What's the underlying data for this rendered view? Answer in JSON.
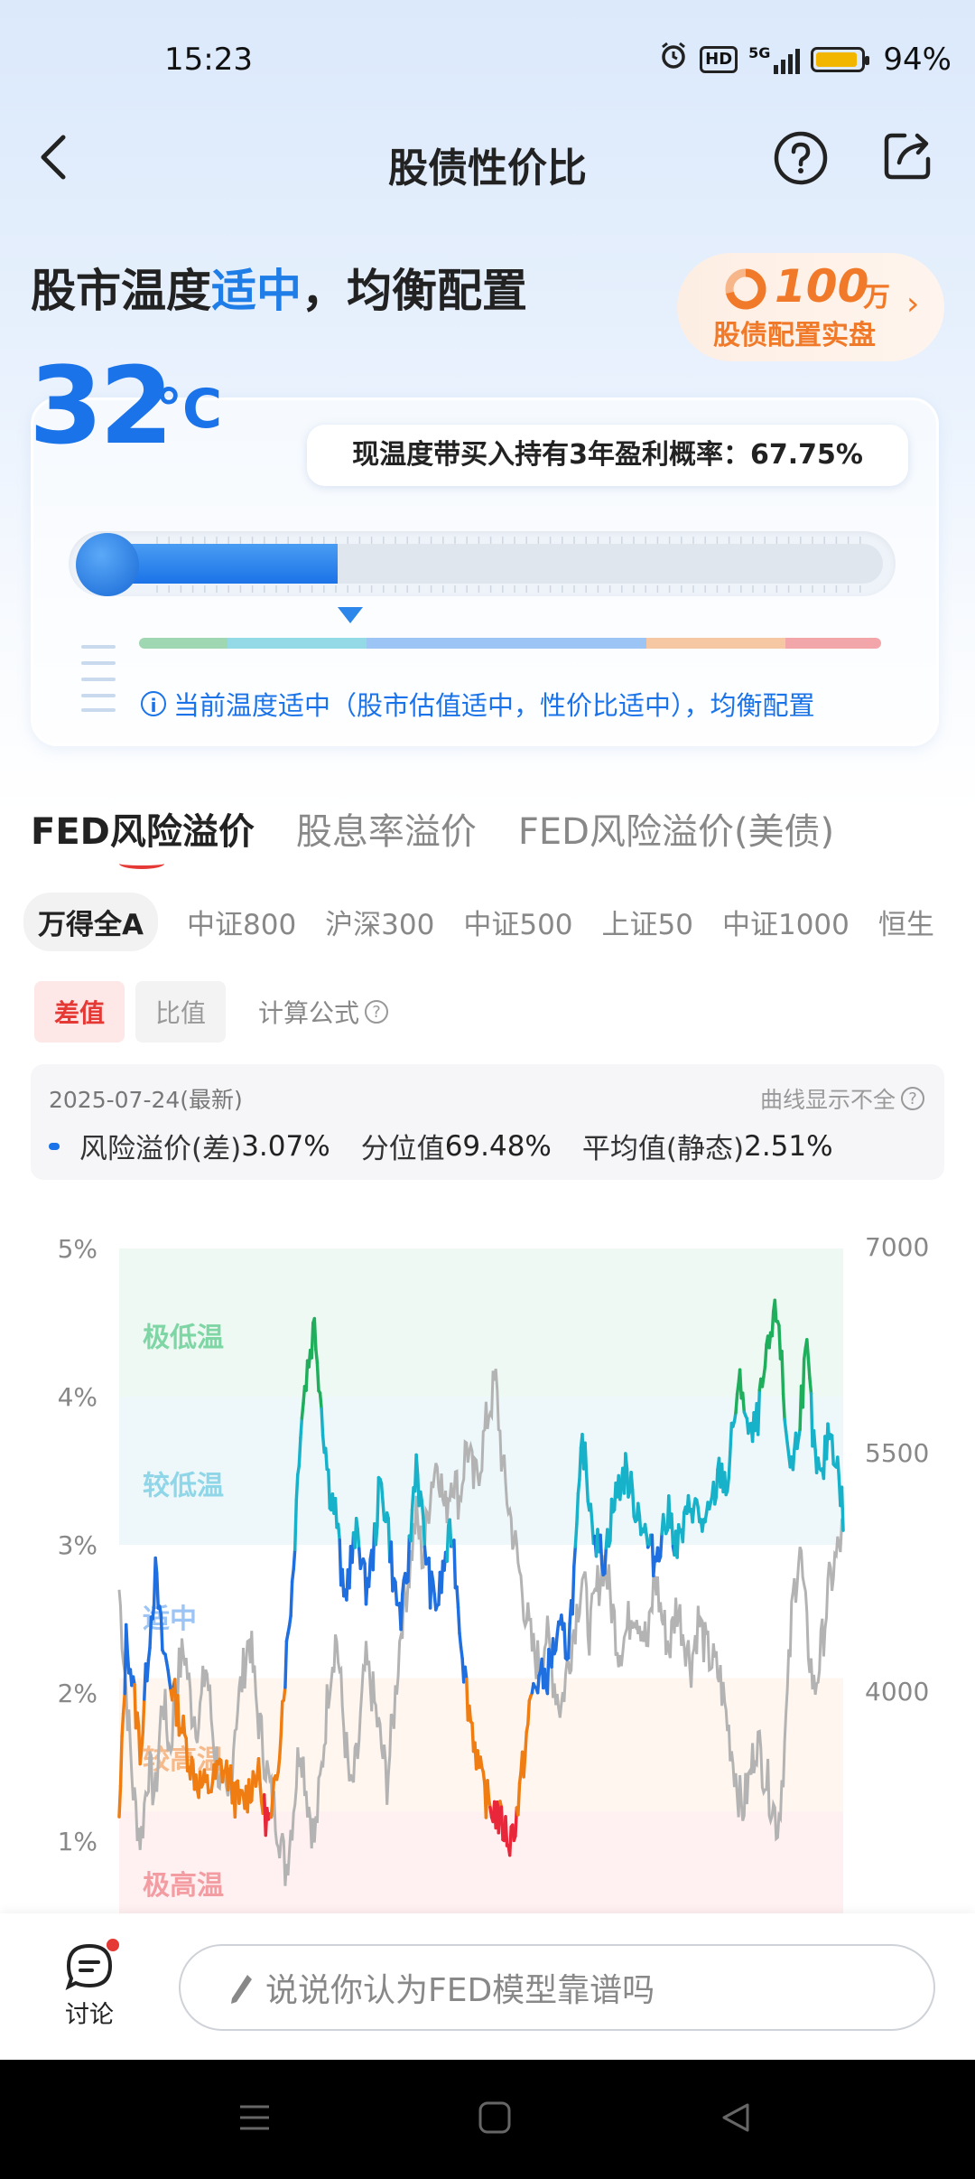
{
  "status_bar": {
    "time": "15:23",
    "network": "5G",
    "battery": "94%",
    "battery_level": 0.94,
    "hd": "HD"
  },
  "nav": {
    "title": "股债性价比"
  },
  "headline": {
    "prefix": "股市温度",
    "highlight": "适中",
    "suffix": "，均衡配置"
  },
  "promo": {
    "amount": "100",
    "unit": "万",
    "subtitle": "股债配置实盘"
  },
  "temperature": {
    "value": "32",
    "unit": "°C",
    "level": 0.32
  },
  "probability": {
    "text": "现温度带买入持有3年盈利概率：67.75%"
  },
  "temperature_scale": {
    "colors": [
      "#9fd7b2",
      "#93d9e6",
      "#9cc4f4",
      "#f5c7a3",
      "#f2a6aa"
    ]
  },
  "info_text": "当前温度适中（股市估值适中，性价比适中），均衡配置",
  "tabs": [
    {
      "label": "FED风险溢价",
      "active": true
    },
    {
      "label": "股息率溢价",
      "active": false
    },
    {
      "label": "FED风险溢价(美债)",
      "active": false
    }
  ],
  "indices": [
    {
      "label": "万得全A",
      "active": true
    },
    {
      "label": "中证800",
      "active": false
    },
    {
      "label": "沪深300",
      "active": false
    },
    {
      "label": "中证500",
      "active": false
    },
    {
      "label": "上证50",
      "active": false
    },
    {
      "label": "中证1000",
      "active": false
    },
    {
      "label": "恒生",
      "active": false
    }
  ],
  "toggles": {
    "diff": "差值",
    "ratio": "比值",
    "formula": "计算公式"
  },
  "stats": {
    "date": "2025-07-24(最新)",
    "note": "曲线显示不全",
    "risk_label": "风险溢价(差)",
    "risk_value": "3.07%",
    "pct_label": "分位值",
    "pct_value": "69.48%",
    "avg_label": "平均值(静态)",
    "avg_value": "2.51%"
  },
  "chart_data": {
    "type": "line",
    "y_left": {
      "ticks": [
        "5%",
        "4%",
        "3%",
        "2%",
        "1%"
      ],
      "min": 0.5,
      "max": 5
    },
    "y_right": {
      "ticks": [
        "7000",
        "5500",
        "4000"
      ]
    },
    "zones": [
      {
        "label": "极低温",
        "color": "#7ed6a5"
      },
      {
        "label": "较低温",
        "color": "#8fd6e8"
      },
      {
        "label": "适中",
        "color": "#9cc4f4"
      },
      {
        "label": "较高温",
        "color": "#f5b98a"
      },
      {
        "label": "极高温",
        "color": "#f39ca2"
      }
    ],
    "series": [
      {
        "values": [
          1.1,
          2.4,
          2.0,
          1.6,
          2.3,
          2.8,
          2.3,
          2.1,
          1.9,
          1.7,
          1.5,
          1.4,
          1.35,
          1.4,
          1.5,
          1.45,
          1.3,
          1.25,
          1.35,
          1.5,
          1.2,
          1.1,
          1.6,
          2.2,
          2.8,
          3.8,
          4.2,
          4.5,
          3.9,
          3.4,
          3.2,
          2.6,
          2.9,
          3.1,
          2.7,
          2.9,
          3.4,
          3.2,
          2.7,
          2.5,
          2.9,
          3.6,
          3.1,
          2.7,
          2.6,
          2.9,
          3.1,
          2.5,
          2.0,
          1.7,
          1.4,
          1.25,
          1.2,
          1.1,
          1.0,
          1.2,
          1.6,
          2.0,
          2.1,
          2.1,
          2.3,
          2.4,
          2.3,
          2.9,
          3.7,
          3.3,
          3.0,
          2.9,
          3.2,
          3.4,
          3.5,
          3.3,
          3.2,
          3.0,
          2.9,
          3.1,
          3.2,
          3.0,
          3.1,
          3.3,
          3.2,
          3.1,
          3.3,
          3.5,
          3.4,
          3.9,
          4.1,
          3.7,
          3.8,
          4.1,
          4.4,
          4.6,
          3.8,
          3.5,
          3.9,
          4.3,
          3.6,
          3.4,
          3.8,
          3.6,
          3.2
        ]
      },
      {
        "values": [
          2.7,
          2.0,
          1.3,
          1.0,
          1.5,
          1.3,
          2.0,
          1.6,
          2.1,
          2.3,
          1.9,
          1.8,
          2.2,
          1.7,
          1.4,
          1.2,
          1.8,
          2.1,
          2.4,
          1.9,
          1.6,
          1.3,
          1.1,
          0.8,
          1.2,
          1.7,
          1.3,
          1.0,
          1.5,
          2.1,
          2.4,
          1.8,
          1.3,
          1.6,
          2.2,
          2.0,
          1.7,
          1.4,
          1.9,
          2.5,
          2.8,
          3.2,
          2.9,
          3.4,
          3.6,
          3.2,
          3.5,
          3.3,
          3.7,
          3.4,
          3.6,
          3.9,
          4.1,
          3.5,
          3.2,
          2.9,
          2.6,
          2.3,
          2.2,
          2.4,
          2.1,
          1.9,
          2.2,
          2.5,
          2.8,
          2.4,
          2.7,
          2.9,
          2.6,
          2.3,
          2.4,
          2.6,
          2.5,
          2.3,
          2.8,
          2.5,
          2.3,
          2.6,
          2.4,
          2.2,
          2.5,
          2.3,
          2.2,
          2.1,
          1.8,
          1.5,
          1.2,
          1.4,
          1.7,
          1.5,
          1.3,
          1.1,
          1.7,
          2.6,
          3.0,
          2.4,
          2.0,
          2.3,
          2.7,
          2.9,
          3.1
        ]
      }
    ]
  },
  "bottom": {
    "discuss_label": "讨论",
    "input_placeholder": "说说你认为FED模型靠谱吗"
  }
}
